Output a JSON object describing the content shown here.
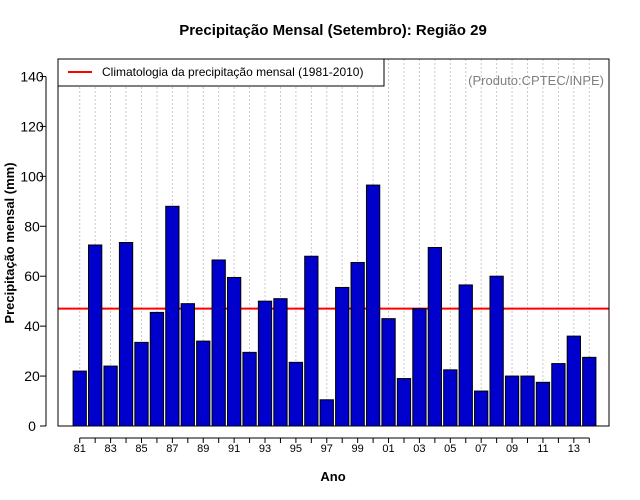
{
  "chart_data": {
    "type": "bar",
    "title": "Precipitação Mensal (Setembro): Região 29",
    "xlabel": "Ano",
    "ylabel": "Precipitação mensal (mm)",
    "ylim": [
      0,
      145
    ],
    "yticks": [
      0,
      20,
      40,
      60,
      80,
      100,
      120,
      140
    ],
    "credit": "(Produto:CPTEC/INPE)",
    "categories": [
      "81",
      "82",
      "83",
      "84",
      "85",
      "86",
      "87",
      "88",
      "89",
      "90",
      "91",
      "92",
      "93",
      "94",
      "95",
      "96",
      "97",
      "98",
      "99",
      "00",
      "01",
      "02",
      "03",
      "04",
      "05",
      "06",
      "07",
      "08",
      "09",
      "10",
      "11",
      "12",
      "13",
      "14"
    ],
    "xtick_labels": [
      "81",
      "83",
      "85",
      "87",
      "89",
      "91",
      "93",
      "95",
      "97",
      "99",
      "01",
      "03",
      "05",
      "07",
      "09",
      "11",
      "13"
    ],
    "values": [
      22,
      72.5,
      24,
      73.5,
      33.5,
      45.5,
      88,
      49,
      34,
      66.5,
      59.5,
      29.5,
      50,
      51,
      25.5,
      68,
      10.5,
      55.5,
      65.5,
      96.5,
      43,
      19,
      47,
      71.5,
      22.5,
      56.5,
      14,
      60,
      20,
      20,
      17.5,
      25,
      36,
      27.5
    ],
    "bar_color": "#0000cc",
    "climatology": {
      "label": "Climatologia da precipitação mensal (1981-2010)",
      "value": 47,
      "color": "#ff0000"
    },
    "legend_position": "top-left",
    "grid": "vertical dotted"
  }
}
